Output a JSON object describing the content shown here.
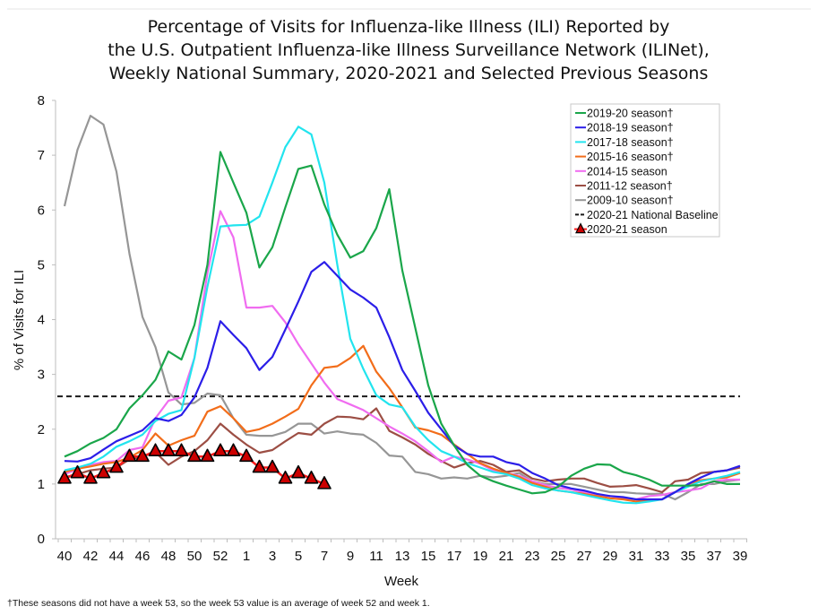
{
  "chart_data": {
    "type": "line",
    "title": [
      "Percentage of Visits for Influenza-like Illness (ILI) Reported by",
      "the U.S. Outpatient Influenza-like Illness Surveillance Network (ILINet),",
      "Weekly National Summary, 2020-2021 and Selected Previous Seasons"
    ],
    "xlabel": "Week",
    "ylabel": "% of Visits for ILI",
    "ylim": [
      0,
      8
    ],
    "yticks": [
      0,
      1,
      2,
      3,
      4,
      5,
      6,
      7,
      8
    ],
    "x": [
      "40",
      "41",
      "42",
      "43",
      "44",
      "45",
      "46",
      "47",
      "48",
      "49",
      "50",
      "51",
      "52",
      "53",
      "1",
      "2",
      "3",
      "4",
      "5",
      "6",
      "7",
      "8",
      "9",
      "10",
      "11",
      "12",
      "13",
      "14",
      "15",
      "16",
      "17",
      "18",
      "19",
      "20",
      "21",
      "22",
      "23",
      "24",
      "25",
      "26",
      "27",
      "28",
      "29",
      "30",
      "31",
      "32",
      "33",
      "34",
      "35",
      "36",
      "37",
      "38",
      "39"
    ],
    "xtick_labels": [
      "40",
      "42",
      "44",
      "46",
      "48",
      "50",
      "52",
      "1",
      "3",
      "5",
      "7",
      "9",
      "11",
      "13",
      "15",
      "17",
      "19",
      "21",
      "23",
      "25",
      "27",
      "29",
      "31",
      "33",
      "35",
      "37",
      "39"
    ],
    "legend_position": "top-right",
    "series": [
      {
        "name": "2019-20 season†",
        "color": "#1aa64a",
        "values": [
          1.5,
          1.6,
          1.74,
          1.84,
          2.0,
          2.38,
          2.62,
          2.9,
          3.42,
          3.27,
          3.9,
          5.0,
          7.06,
          6.5,
          5.95,
          4.95,
          5.32,
          6.05,
          6.75,
          6.81,
          6.1,
          5.55,
          5.13,
          5.25,
          5.67,
          6.38,
          4.9,
          3.85,
          2.8,
          2.1,
          1.7,
          1.35,
          1.15,
          1.05,
          0.97,
          0.9,
          0.83,
          0.85,
          0.95,
          1.15,
          1.28,
          1.36,
          1.35,
          1.22,
          1.16,
          1.08,
          0.97,
          0.97,
          0.97,
          0.98,
          1.05,
          1.0,
          1.0
        ]
      },
      {
        "name": "2018-19 season†",
        "color": "#2b1ee8",
        "values": [
          1.42,
          1.41,
          1.47,
          1.63,
          1.78,
          1.88,
          1.98,
          2.2,
          2.15,
          2.26,
          2.58,
          3.12,
          3.97,
          3.72,
          3.48,
          3.08,
          3.32,
          3.82,
          4.33,
          4.87,
          5.05,
          4.8,
          4.55,
          4.4,
          4.22,
          3.68,
          3.08,
          2.7,
          2.3,
          2.0,
          1.7,
          1.55,
          1.5,
          1.5,
          1.4,
          1.35,
          1.2,
          1.1,
          0.98,
          0.92,
          0.88,
          0.82,
          0.78,
          0.76,
          0.72,
          0.72,
          0.72,
          0.85,
          1.0,
          1.12,
          1.22,
          1.25,
          1.33
        ]
      },
      {
        "name": "2017-18 season†",
        "color": "#22e4ee",
        "values": [
          1.25,
          1.3,
          1.37,
          1.5,
          1.68,
          1.78,
          1.9,
          2.15,
          2.28,
          2.35,
          3.3,
          4.6,
          5.7,
          5.72,
          5.73,
          5.88,
          6.5,
          7.15,
          7.52,
          7.38,
          6.5,
          5.0,
          3.65,
          3.1,
          2.62,
          2.45,
          2.4,
          2.05,
          1.8,
          1.6,
          1.5,
          1.38,
          1.3,
          1.22,
          1.18,
          1.1,
          0.98,
          0.92,
          0.88,
          0.85,
          0.8,
          0.75,
          0.7,
          0.66,
          0.65,
          0.68,
          0.72,
          0.85,
          0.95,
          1.05,
          1.1,
          1.15,
          1.22
        ]
      },
      {
        "name": "2015-16 season†",
        "color": "#f26d1a",
        "values": [
          1.22,
          1.28,
          1.32,
          1.37,
          1.4,
          1.48,
          1.62,
          1.92,
          1.7,
          1.8,
          1.88,
          2.32,
          2.42,
          2.2,
          1.95,
          2.0,
          2.1,
          2.23,
          2.37,
          2.8,
          3.12,
          3.15,
          3.3,
          3.52,
          3.05,
          2.75,
          2.4,
          2.03,
          1.98,
          1.9,
          1.72,
          1.55,
          1.38,
          1.28,
          1.2,
          1.13,
          1.02,
          0.95,
          0.88,
          0.85,
          0.82,
          0.78,
          0.74,
          0.72,
          0.68,
          0.7,
          0.72,
          0.85,
          1.0,
          1.07,
          1.1,
          1.12,
          1.2
        ]
      },
      {
        "name": "2014-15 season",
        "color": "#f06cf0",
        "values": [
          1.18,
          1.27,
          1.35,
          1.4,
          1.42,
          1.62,
          1.67,
          2.2,
          2.52,
          2.58,
          3.3,
          4.85,
          5.98,
          5.5,
          4.22,
          4.22,
          4.25,
          3.95,
          3.55,
          3.2,
          2.85,
          2.55,
          2.45,
          2.35,
          2.2,
          2.05,
          1.92,
          1.78,
          1.6,
          1.4,
          1.5,
          1.45,
          1.37,
          1.25,
          1.2,
          1.15,
          1.05,
          0.98,
          0.93,
          0.9,
          0.85,
          0.8,
          0.78,
          0.75,
          0.72,
          0.78,
          0.8,
          0.85,
          0.88,
          0.92,
          1.05,
          1.08,
          1.08
        ]
      },
      {
        "name": "2011-12 season†",
        "color": "#9c4e44",
        "values": [
          1.12,
          1.18,
          1.25,
          1.28,
          1.3,
          1.45,
          1.5,
          1.58,
          1.35,
          1.5,
          1.6,
          1.8,
          2.1,
          1.9,
          1.72,
          1.57,
          1.62,
          1.78,
          1.93,
          1.9,
          2.1,
          2.23,
          2.22,
          2.18,
          2.38,
          1.97,
          1.85,
          1.72,
          1.55,
          1.42,
          1.3,
          1.38,
          1.42,
          1.35,
          1.22,
          1.25,
          1.1,
          1.05,
          1.08,
          1.1,
          1.1,
          1.02,
          0.95,
          0.96,
          0.98,
          0.92,
          0.85,
          1.05,
          1.08,
          1.2,
          1.22,
          1.25,
          1.3
        ]
      },
      {
        "name": "2009-10 season†",
        "color": "#969696",
        "values": [
          6.07,
          7.1,
          7.72,
          7.56,
          6.7,
          5.2,
          4.05,
          3.5,
          2.67,
          2.45,
          2.48,
          2.65,
          2.62,
          2.2,
          1.9,
          1.88,
          1.88,
          1.95,
          2.1,
          2.1,
          1.92,
          1.96,
          1.92,
          1.9,
          1.75,
          1.52,
          1.5,
          1.22,
          1.18,
          1.1,
          1.12,
          1.1,
          1.15,
          1.12,
          1.15,
          1.2,
          1.05,
          1.0,
          1.0,
          1.0,
          0.95,
          0.9,
          0.85,
          0.85,
          0.83,
          0.82,
          0.82,
          0.72,
          0.85,
          1.0,
          1.0,
          1.05,
          1.08
        ]
      },
      {
        "name": "2020-21 season",
        "color": "#ff1c1c",
        "marker_fill": "#cc0000",
        "values": [
          1.1,
          1.2,
          1.1,
          1.2,
          1.3,
          1.5,
          1.5,
          1.6,
          1.6,
          1.6,
          1.5,
          1.5,
          1.6,
          1.6,
          1.5,
          1.3,
          1.3,
          1.1,
          1.2,
          1.1,
          1.0
        ]
      }
    ],
    "baseline": {
      "name": "2020-21 National Baseline",
      "value": 2.6,
      "color": "#1a1a1a"
    },
    "legend": [
      {
        "label": "2019-20 season†",
        "style": "line",
        "color": "#1aa64a"
      },
      {
        "label": "2018-19 season†",
        "style": "line",
        "color": "#2b1ee8"
      },
      {
        "label": "2017-18 season†",
        "style": "line",
        "color": "#22e4ee"
      },
      {
        "label": "2015-16 season†",
        "style": "line",
        "color": "#f26d1a"
      },
      {
        "label": "2014-15 season",
        "style": "line",
        "color": "#f06cf0"
      },
      {
        "label": "2011-12 season†",
        "style": "line",
        "color": "#9c4e44"
      },
      {
        "label": "2009-10 season†",
        "style": "line",
        "color": "#969696"
      },
      {
        "label": "2020-21 National Baseline",
        "style": "dash",
        "color": "#1a1a1a"
      },
      {
        "label": "2020-21 season",
        "style": "marker",
        "color": "#ff1c1c"
      }
    ],
    "footnote": "†These seasons did not have a week 53, so the week 53 value is an average of week 52 and week 1."
  }
}
